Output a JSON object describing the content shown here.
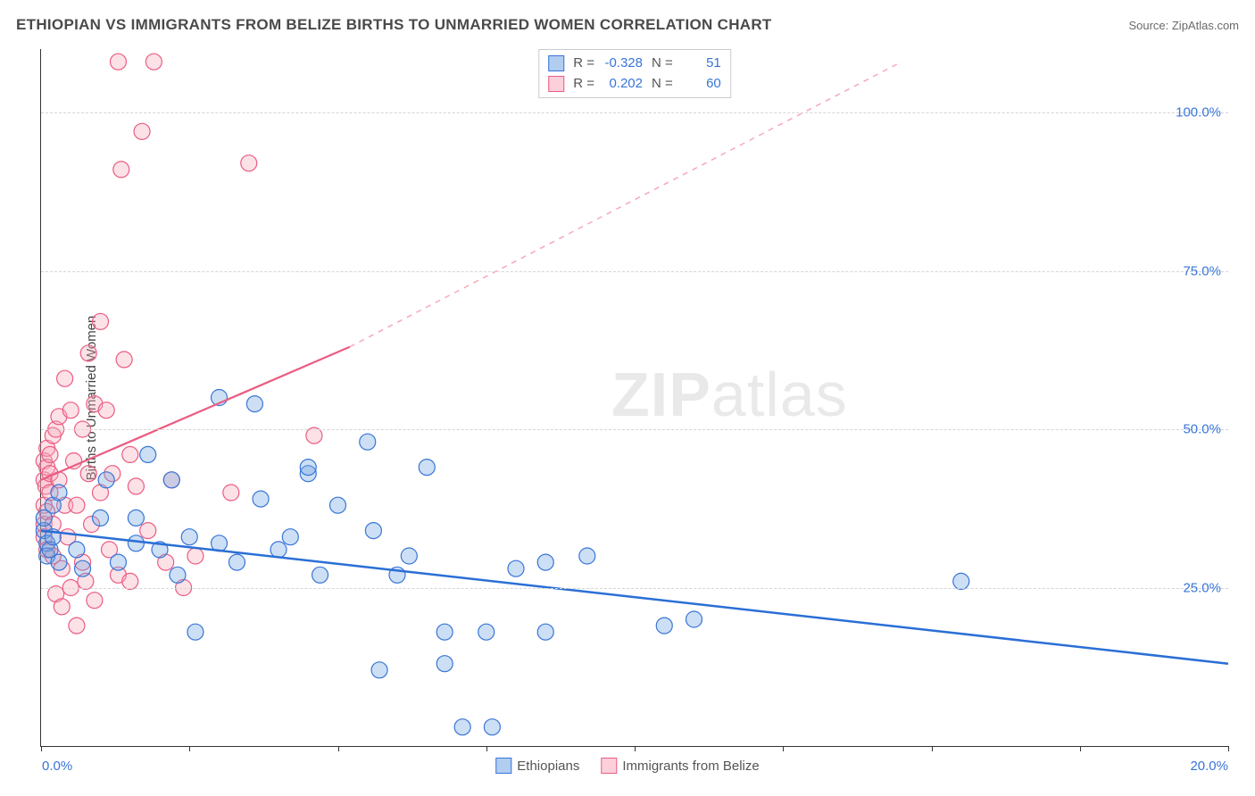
{
  "header": {
    "title": "ETHIOPIAN VS IMMIGRANTS FROM BELIZE BIRTHS TO UNMARRIED WOMEN CORRELATION CHART",
    "source": "Source: ZipAtlas.com"
  },
  "chart": {
    "type": "scatter",
    "ylabel": "Births to Unmarried Women",
    "xlim": [
      0,
      20
    ],
    "ylim": [
      0,
      110
    ],
    "xtick_positions": [
      0,
      2.5,
      5,
      7.5,
      10,
      12.5,
      15,
      17.5,
      20
    ],
    "xtick_labels_shown": {
      "0": "0.0%",
      "20": "20.0%"
    },
    "ytick_positions": [
      25,
      50,
      75,
      100
    ],
    "ytick_labels": [
      "25.0%",
      "50.0%",
      "75.0%",
      "100.0%"
    ],
    "grid_color": "#d5d5d5",
    "background_color": "#ffffff",
    "watermark": "ZIPatlas",
    "marker_radius": 9,
    "series": [
      {
        "name": "Ethiopians",
        "color": "#6fa3e0",
        "stroke": "#3875d7",
        "R": "-0.328",
        "N": "51",
        "trend": {
          "x1": 0,
          "y1": 34,
          "x2": 20,
          "y2": 13,
          "dash": false,
          "stroke": "#2a6fd6",
          "width": 2.5
        },
        "points": [
          [
            0.05,
            34
          ],
          [
            0.05,
            36
          ],
          [
            0.1,
            32
          ],
          [
            0.1,
            30
          ],
          [
            0.15,
            31
          ],
          [
            0.2,
            38
          ],
          [
            0.2,
            33
          ],
          [
            0.3,
            40
          ],
          [
            0.3,
            29
          ],
          [
            0.6,
            31
          ],
          [
            0.7,
            28
          ],
          [
            1.0,
            36
          ],
          [
            1.1,
            42
          ],
          [
            1.3,
            29
          ],
          [
            1.6,
            32
          ],
          [
            1.6,
            36
          ],
          [
            1.8,
            46
          ],
          [
            2.0,
            31
          ],
          [
            2.2,
            42
          ],
          [
            2.3,
            27
          ],
          [
            2.5,
            33
          ],
          [
            2.6,
            18
          ],
          [
            3.0,
            32
          ],
          [
            3.0,
            55
          ],
          [
            3.3,
            29
          ],
          [
            3.6,
            54
          ],
          [
            3.7,
            39
          ],
          [
            4.0,
            31
          ],
          [
            4.2,
            33
          ],
          [
            4.5,
            43
          ],
          [
            4.5,
            44
          ],
          [
            4.7,
            27
          ],
          [
            5.0,
            38
          ],
          [
            5.5,
            48
          ],
          [
            5.6,
            34
          ],
          [
            5.7,
            12
          ],
          [
            6.0,
            27
          ],
          [
            6.2,
            30
          ],
          [
            6.5,
            44
          ],
          [
            6.8,
            18
          ],
          [
            6.8,
            13
          ],
          [
            7.1,
            3
          ],
          [
            7.5,
            18
          ],
          [
            7.6,
            3
          ],
          [
            8.0,
            28
          ],
          [
            8.5,
            18
          ],
          [
            8.5,
            29
          ],
          [
            9.2,
            30
          ],
          [
            10.5,
            19
          ],
          [
            11.0,
            20
          ],
          [
            15.5,
            26
          ]
        ]
      },
      {
        "name": "Immigrants from Belize",
        "color": "#f7a8ba",
        "stroke": "#eb5c82",
        "R": "0.202",
        "N": "60",
        "trend": {
          "x1": 0,
          "y1": 42,
          "x2": 5.2,
          "y2": 63,
          "dash": false,
          "stroke": "#eb5c82",
          "width": 2.2
        },
        "trend_ext": {
          "x1": 5.2,
          "y1": 63,
          "x2": 14.5,
          "y2": 108,
          "dash": true,
          "stroke": "#f7a8ba",
          "width": 1.5
        },
        "points": [
          [
            0.05,
            42
          ],
          [
            0.05,
            45
          ],
          [
            0.05,
            38
          ],
          [
            0.05,
            35
          ],
          [
            0.05,
            33
          ],
          [
            0.08,
            41
          ],
          [
            0.1,
            44
          ],
          [
            0.1,
            47
          ],
          [
            0.1,
            37
          ],
          [
            0.1,
            31
          ],
          [
            0.15,
            46
          ],
          [
            0.15,
            40
          ],
          [
            0.15,
            43
          ],
          [
            0.2,
            49
          ],
          [
            0.2,
            35
          ],
          [
            0.2,
            30
          ],
          [
            0.25,
            24
          ],
          [
            0.25,
            50
          ],
          [
            0.3,
            52
          ],
          [
            0.3,
            42
          ],
          [
            0.35,
            28
          ],
          [
            0.35,
            22
          ],
          [
            0.4,
            38
          ],
          [
            0.4,
            58
          ],
          [
            0.45,
            33
          ],
          [
            0.5,
            25
          ],
          [
            0.5,
            53
          ],
          [
            0.55,
            45
          ],
          [
            0.6,
            19
          ],
          [
            0.6,
            38
          ],
          [
            0.7,
            50
          ],
          [
            0.7,
            29
          ],
          [
            0.75,
            26
          ],
          [
            0.8,
            43
          ],
          [
            0.8,
            62
          ],
          [
            0.85,
            35
          ],
          [
            0.9,
            54
          ],
          [
            0.9,
            23
          ],
          [
            1.0,
            67
          ],
          [
            1.0,
            40
          ],
          [
            1.1,
            53
          ],
          [
            1.15,
            31
          ],
          [
            1.2,
            43
          ],
          [
            1.3,
            27
          ],
          [
            1.3,
            108
          ],
          [
            1.35,
            91
          ],
          [
            1.4,
            61
          ],
          [
            1.5,
            26
          ],
          [
            1.5,
            46
          ],
          [
            1.6,
            41
          ],
          [
            1.7,
            97
          ],
          [
            1.8,
            34
          ],
          [
            1.9,
            108
          ],
          [
            2.1,
            29
          ],
          [
            2.2,
            42
          ],
          [
            2.4,
            25
          ],
          [
            2.6,
            30
          ],
          [
            3.2,
            40
          ],
          [
            3.5,
            92
          ],
          [
            4.6,
            49
          ]
        ]
      }
    ],
    "legend_bottom": [
      {
        "label": "Ethiopians",
        "fill": "#b1cdf0",
        "stroke": "#3875d7"
      },
      {
        "label": "Immigrants from Belize",
        "fill": "#fcd0da",
        "stroke": "#eb5c82"
      }
    ],
    "legend_top": [
      {
        "fill": "#b1cdf0",
        "stroke": "#3875d7",
        "R": "-0.328",
        "N": "51"
      },
      {
        "fill": "#fcd0da",
        "stroke": "#eb5c82",
        "R": "0.202",
        "N": "60"
      }
    ]
  }
}
